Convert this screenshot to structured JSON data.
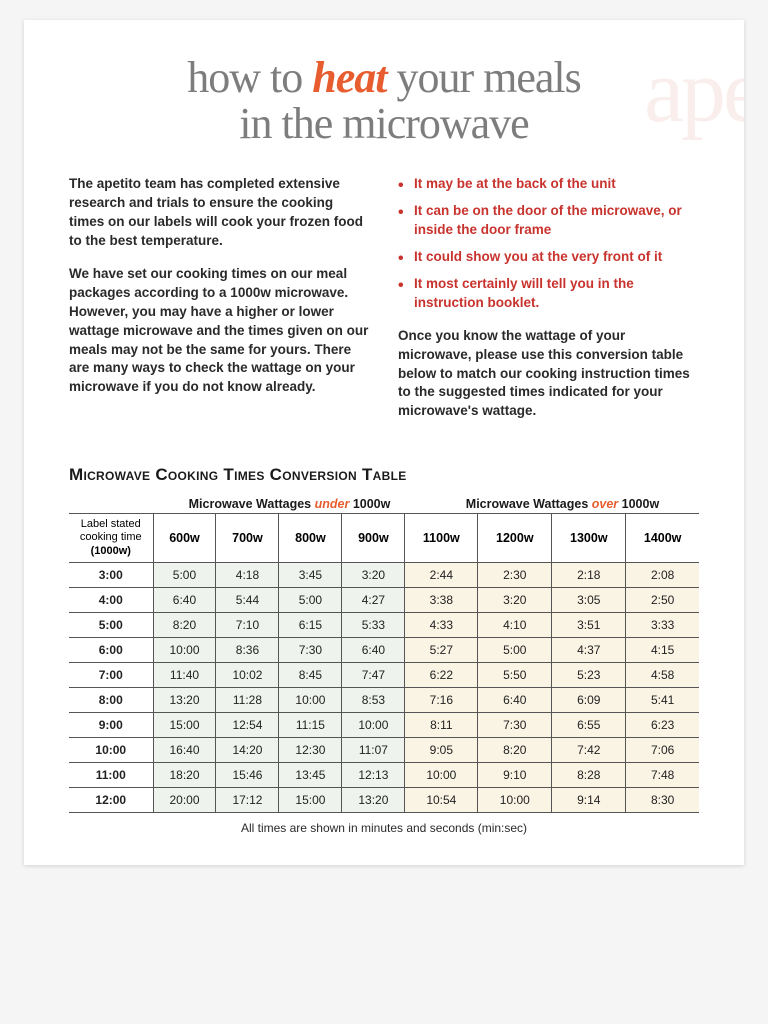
{
  "watermark": "apeti",
  "title_parts": {
    "a": "how to ",
    "b": "heat",
    "c": " your meals",
    "d": "in the microwave"
  },
  "intro_left": [
    "The apetito team has completed extensive research and trials to ensure the cooking times on our labels will cook your frozen food to the best temperature.",
    "We have set our cooking times on our meal packages according to a 1000w microwave. However, you may have a higher or lower wattage microwave and the times given on our meals may not be the same for yours. There are many ways to check the wattage on your microwave if you do not know already."
  ],
  "bullets": [
    "It may be at the back of the unit",
    "It can be on the door of the microwave, or inside the door frame",
    "It could show you at the very front of it",
    "It most certainly will tell you in the instruction booklet."
  ],
  "intro_right_after": "Once you know the wattage of your microwave, please use this conversion table below to match our cooking instruction times to the suggested times indicated for your microwave's wattage.",
  "table_title": "Microwave Cooking Times Conversion Table",
  "group_under_a": "Microwave Wattages ",
  "group_under_b": "under",
  "group_under_c": " 1000w",
  "group_over_a": "Microwave Wattages ",
  "group_over_b": "over",
  "group_over_c": " 1000w",
  "rowhead_line1": "Label stated",
  "rowhead_line2": "cooking time",
  "rowhead_line3": "(1000w)",
  "cols_under": [
    "600w",
    "700w",
    "800w",
    "900w"
  ],
  "cols_over": [
    "1100w",
    "1200w",
    "1300w",
    "1400w"
  ],
  "rows": [
    {
      "label": "3:00",
      "under": [
        "5:00",
        "4:18",
        "3:45",
        "3:20"
      ],
      "over": [
        "2:44",
        "2:30",
        "2:18",
        "2:08"
      ]
    },
    {
      "label": "4:00",
      "under": [
        "6:40",
        "5:44",
        "5:00",
        "4:27"
      ],
      "over": [
        "3:38",
        "3:20",
        "3:05",
        "2:50"
      ]
    },
    {
      "label": "5:00",
      "under": [
        "8:20",
        "7:10",
        "6:15",
        "5:33"
      ],
      "over": [
        "4:33",
        "4:10",
        "3:51",
        "3:33"
      ]
    },
    {
      "label": "6:00",
      "under": [
        "10:00",
        "8:36",
        "7:30",
        "6:40"
      ],
      "over": [
        "5:27",
        "5:00",
        "4:37",
        "4:15"
      ]
    },
    {
      "label": "7:00",
      "under": [
        "11:40",
        "10:02",
        "8:45",
        "7:47"
      ],
      "over": [
        "6:22",
        "5:50",
        "5:23",
        "4:58"
      ]
    },
    {
      "label": "8:00",
      "under": [
        "13:20",
        "11:28",
        "10:00",
        "8:53"
      ],
      "over": [
        "7:16",
        "6:40",
        "6:09",
        "5:41"
      ]
    },
    {
      "label": "9:00",
      "under": [
        "15:00",
        "12:54",
        "11:15",
        "10:00"
      ],
      "over": [
        "8:11",
        "7:30",
        "6:55",
        "6:23"
      ]
    },
    {
      "label": "10:00",
      "under": [
        "16:40",
        "14:20",
        "12:30",
        "11:07"
      ],
      "over": [
        "9:05",
        "8:20",
        "7:42",
        "7:06"
      ]
    },
    {
      "label": "11:00",
      "under": [
        "18:20",
        "15:46",
        "13:45",
        "12:13"
      ],
      "over": [
        "10:00",
        "9:10",
        "8:28",
        "7:48"
      ]
    },
    {
      "label": "12:00",
      "under": [
        "20:00",
        "17:12",
        "15:00",
        "13:20"
      ],
      "over": [
        "10:54",
        "10:00",
        "9:14",
        "8:30"
      ]
    }
  ],
  "footnote": "All times are shown in minutes and seconds (min:sec)",
  "colors": {
    "accent": "#e85d2f",
    "bullet": "#c8332e",
    "under_bg": "#eef3ed",
    "over_bg": "#faf4e5",
    "title_gray": "#7d7d7d"
  }
}
